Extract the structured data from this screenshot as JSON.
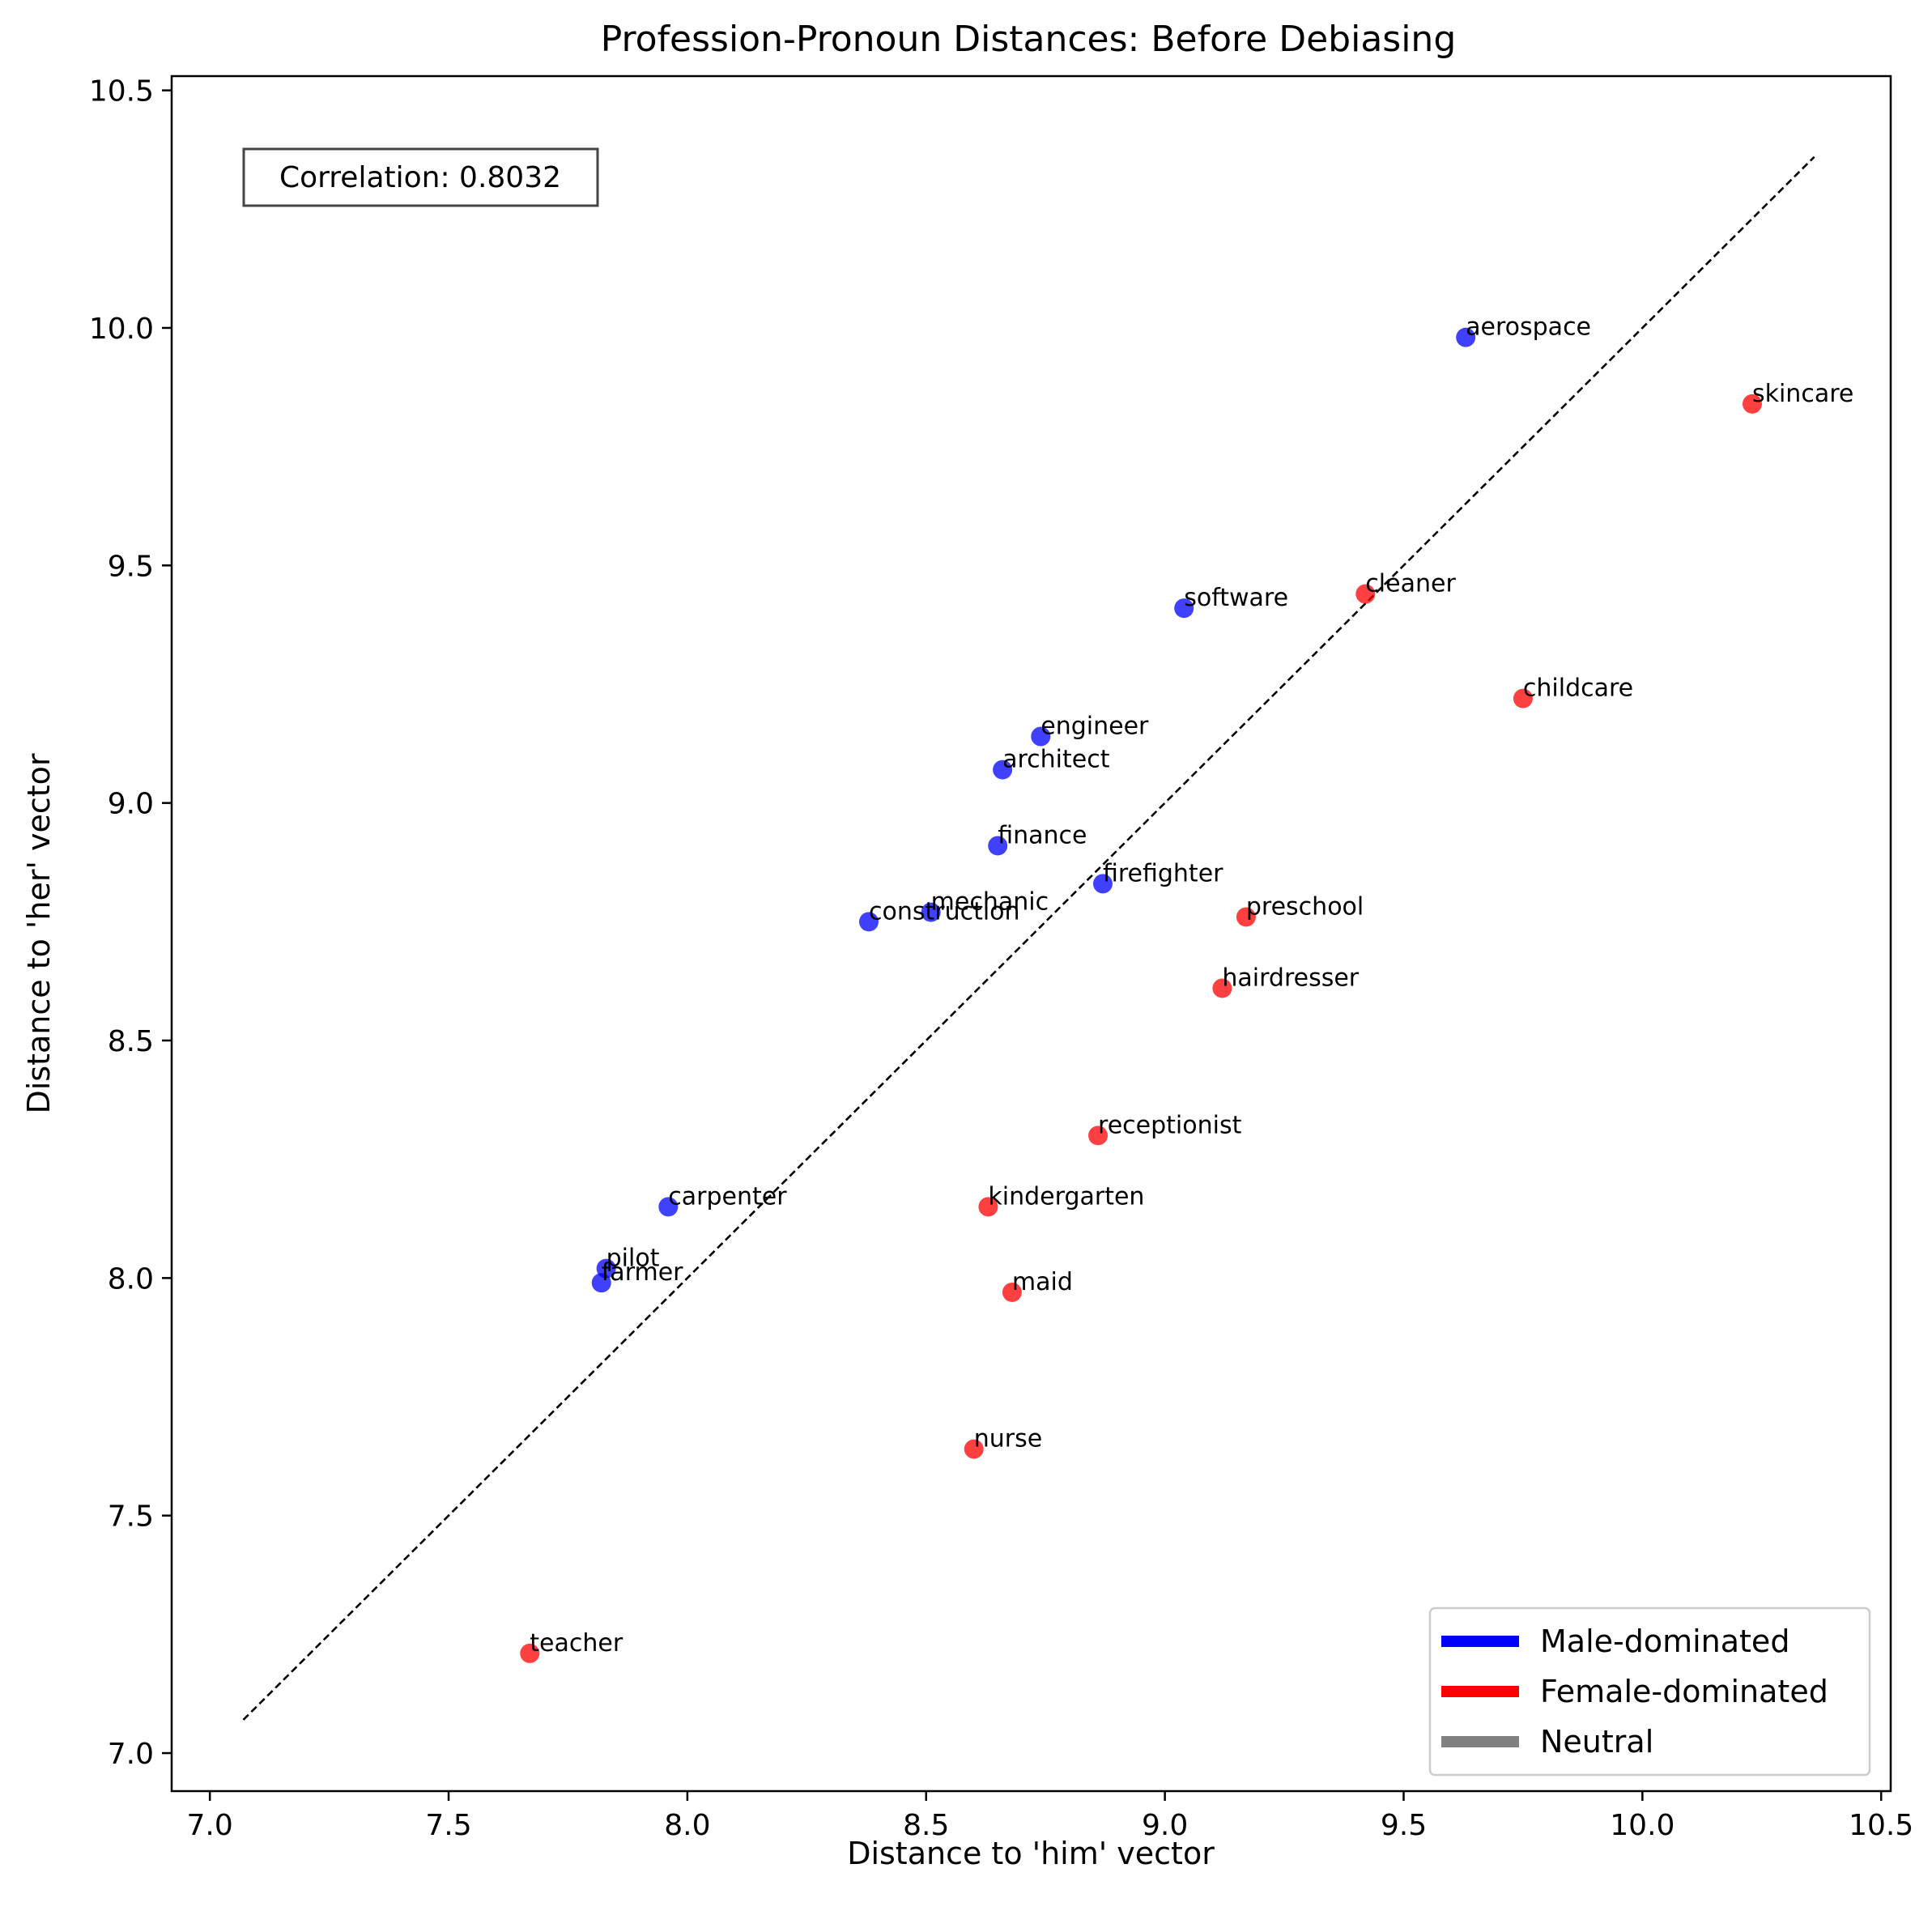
{
  "chart_data": {
    "type": "scatter",
    "title": "Profession-Pronoun Distances: Before Debiasing",
    "xlabel": "Distance to 'him' vector",
    "ylabel": "Distance to 'her' vector",
    "xlim": [
      6.92,
      10.52
    ],
    "ylim": [
      6.92,
      10.53
    ],
    "xticks": [
      7.0,
      7.5,
      8.0,
      8.5,
      9.0,
      9.5,
      10.0,
      10.5
    ],
    "yticks": [
      7.0,
      7.5,
      8.0,
      8.5,
      9.0,
      9.5,
      10.0,
      10.5
    ],
    "xtick_labels": [
      "7.0",
      "7.5",
      "8.0",
      "8.5",
      "9.0",
      "9.5",
      "10.0",
      "10.5"
    ],
    "ytick_labels": [
      "7.0",
      "7.5",
      "8.0",
      "8.5",
      "9.0",
      "9.5",
      "10.0",
      "10.5"
    ],
    "grid": false,
    "legend_position": "lower-right",
    "annotation": "Correlation: 0.8032",
    "reference_line": {
      "style": "dashed",
      "color": "#000000",
      "from": [
        7.07,
        7.07
      ],
      "to": [
        10.36,
        10.36
      ]
    },
    "series": [
      {
        "name": "Male-dominated",
        "color": "#0000ff",
        "points": [
          {
            "label": "aerospace",
            "x": 9.63,
            "y": 9.98
          },
          {
            "label": "software",
            "x": 9.04,
            "y": 9.41
          },
          {
            "label": "engineer",
            "x": 8.74,
            "y": 9.14
          },
          {
            "label": "architect",
            "x": 8.66,
            "y": 9.07
          },
          {
            "label": "finance",
            "x": 8.65,
            "y": 8.91
          },
          {
            "label": "firefighter",
            "x": 8.87,
            "y": 8.83
          },
          {
            "label": "mechanic",
            "x": 8.51,
            "y": 8.77
          },
          {
            "label": "construction",
            "x": 8.38,
            "y": 8.75
          },
          {
            "label": "carpenter",
            "x": 7.96,
            "y": 8.15
          },
          {
            "label": "pilot",
            "x": 7.83,
            "y": 8.02
          },
          {
            "label": "farmer",
            "x": 7.82,
            "y": 7.99
          }
        ]
      },
      {
        "name": "Female-dominated",
        "color": "#ff0000",
        "points": [
          {
            "label": "skincare",
            "x": 10.23,
            "y": 9.84
          },
          {
            "label": "cleaner",
            "x": 9.42,
            "y": 9.44
          },
          {
            "label": "childcare",
            "x": 9.75,
            "y": 9.22
          },
          {
            "label": "preschool",
            "x": 9.17,
            "y": 8.76
          },
          {
            "label": "hairdresser",
            "x": 9.12,
            "y": 8.61
          },
          {
            "label": "receptionist",
            "x": 8.86,
            "y": 8.3
          },
          {
            "label": "kindergarten",
            "x": 8.63,
            "y": 8.15
          },
          {
            "label": "maid",
            "x": 8.68,
            "y": 7.97
          },
          {
            "label": "nurse",
            "x": 8.6,
            "y": 7.64
          },
          {
            "label": "teacher",
            "x": 7.67,
            "y": 7.21
          }
        ]
      },
      {
        "name": "Neutral",
        "color": "#808080",
        "points": []
      }
    ]
  }
}
